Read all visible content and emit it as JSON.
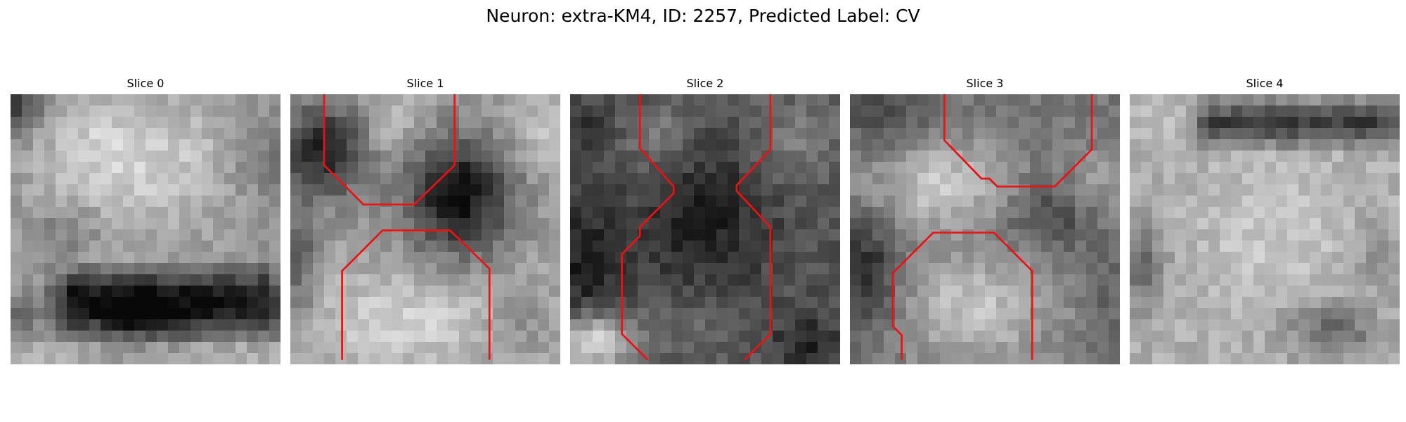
{
  "figure": {
    "title": "Neuron: extra-KM4, ID: 2257, Predicted Label: CV"
  },
  "contour_color": "#ee1111",
  "image_grid_size": 24,
  "panels": [
    {
      "title": "Slice 0",
      "pattern": "Bright textured mass across the upper and middle field with a dark horizontal band near the bottom",
      "contours": []
    },
    {
      "title": "Slice 1",
      "pattern": "Two dark rounded blobs near the top separated by a bright region, with bright tissue filling the lower half",
      "contours": [
        [
          [
            3,
            -0.2
          ],
          [
            3,
            6.3
          ],
          [
            6.5,
            9.8
          ],
          [
            11,
            9.8
          ],
          [
            14.6,
            6.3
          ],
          [
            14.6,
            -0.2
          ]
        ],
        [
          [
            4.6,
            23.6
          ],
          [
            4.6,
            15.7
          ],
          [
            8.2,
            12.1
          ],
          [
            14.2,
            12.1
          ],
          [
            17.7,
            15.5
          ],
          [
            17.7,
            23.6
          ]
        ]
      ]
    },
    {
      "title": "Slice 2",
      "pattern": "Dark field with a large dark central blob and a bright patch at the lower left",
      "contours": [
        [
          [
            6.2,
            -0.2
          ],
          [
            6.2,
            4.8
          ],
          [
            9.2,
            8.2
          ],
          [
            9.2,
            8.8
          ],
          [
            6.2,
            11.8
          ],
          [
            6.2,
            12.6
          ],
          [
            4.6,
            14.2
          ],
          [
            4.6,
            21.3
          ],
          [
            6.9,
            23.6
          ]
        ],
        [
          [
            17.8,
            -0.2
          ],
          [
            17.8,
            4.9
          ],
          [
            14.8,
            8.1
          ],
          [
            14.8,
            8.6
          ],
          [
            17.8,
            11.8
          ],
          [
            17.8,
            21.3
          ],
          [
            15.5,
            23.6
          ]
        ]
      ]
    },
    {
      "title": "Slice 3",
      "pattern": "Bright diagonal band from the left middle to the center, darker regions top left and right, bright tissue at the bottom",
      "contours": [
        [
          [
            8.4,
            -0.2
          ],
          [
            8.4,
            4.1
          ],
          [
            11.7,
            7.5
          ],
          [
            12.4,
            7.5
          ],
          [
            13.1,
            8.2
          ],
          [
            18.2,
            8.2
          ],
          [
            21.5,
            4.9
          ],
          [
            21.5,
            -0.2
          ]
        ],
        [
          [
            4.6,
            23.6
          ],
          [
            4.6,
            21.4
          ],
          [
            3.8,
            20.6
          ],
          [
            3.8,
            15.9
          ],
          [
            7.4,
            12.3
          ],
          [
            12.8,
            12.3
          ],
          [
            16.2,
            15.7
          ],
          [
            16.2,
            23.6
          ]
        ]
      ]
    },
    {
      "title": "Slice 4",
      "pattern": "Dark band across the top with a mostly bright textured body below and darker spots on the left and lower right",
      "contours": []
    }
  ]
}
